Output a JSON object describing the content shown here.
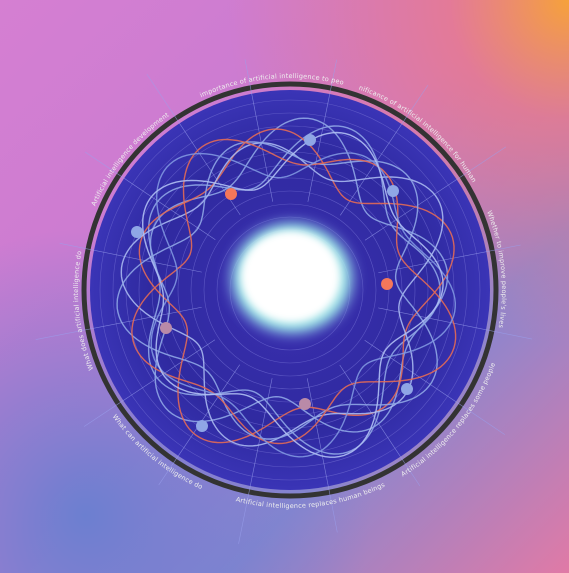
{
  "ring_labels": [
    "The importance of artificial intelligence to people",
    "The significance of artificial intelligence for human beings",
    "Whether to improve people's lives",
    "Artificial intelligence replaces some people",
    "Artificial intelligence replaces human beings",
    "What can artificial intelligence do",
    "What does artificial intelligence do",
    "Artificial intelligence development"
  ]
}
